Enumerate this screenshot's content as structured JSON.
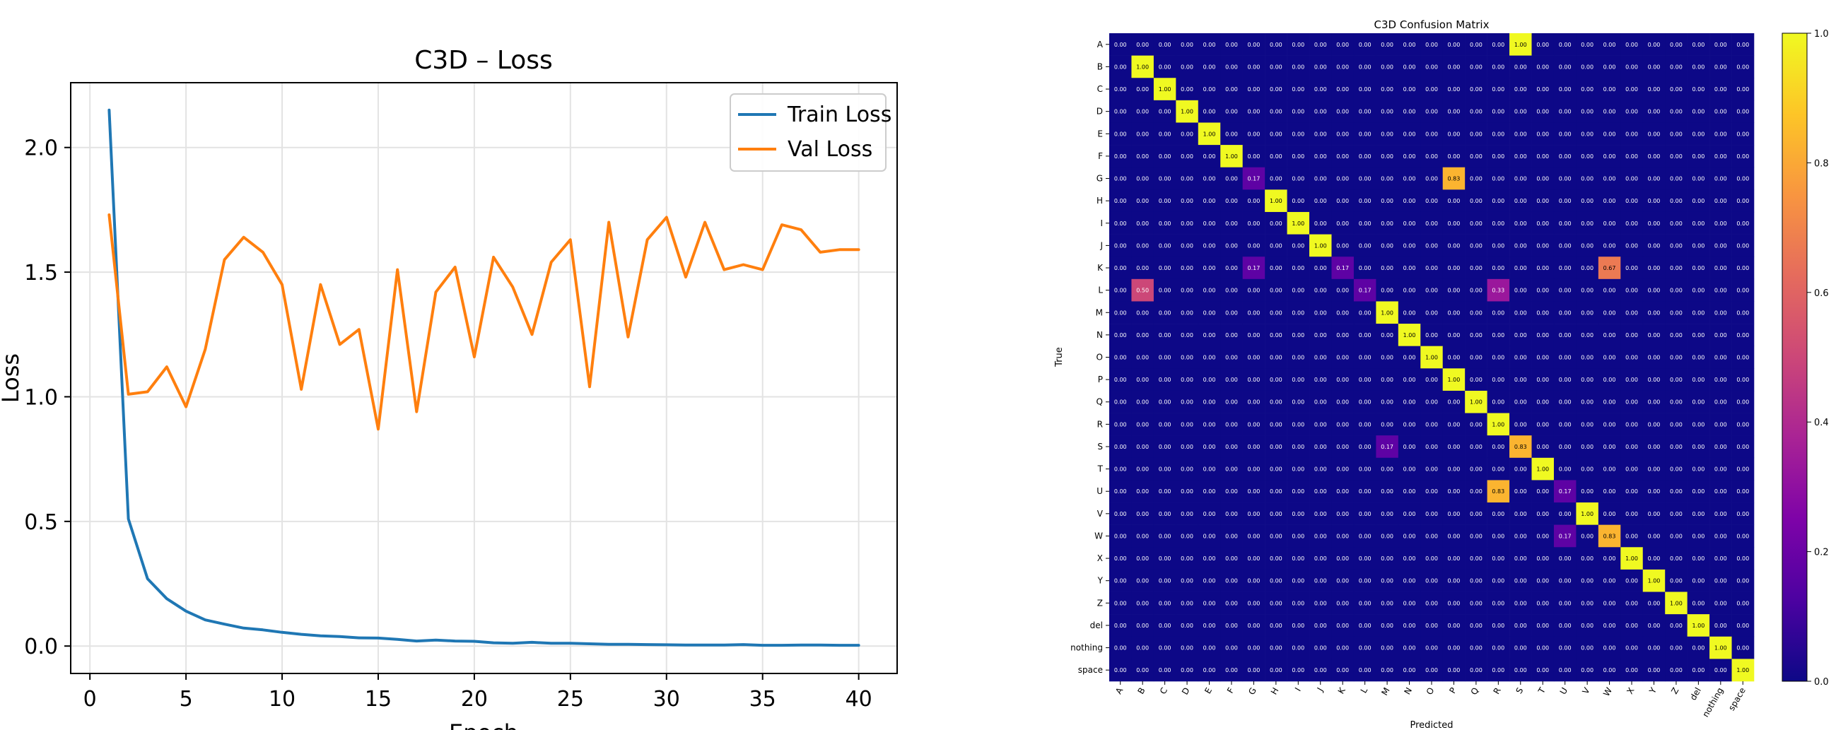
{
  "chart_data": [
    {
      "type": "line",
      "title": "C3D – Loss",
      "xlabel": "Epoch",
      "ylabel": "Loss",
      "xlim": [
        -1,
        42
      ],
      "ylim": [
        -0.11,
        2.26
      ],
      "xticks": [
        0,
        5,
        10,
        15,
        20,
        25,
        30,
        35,
        40
      ],
      "yticks": [
        0.0,
        0.5,
        1.0,
        1.5,
        2.0
      ],
      "ytick_labels": [
        "0.0",
        "0.5",
        "1.0",
        "1.5",
        "2.0"
      ],
      "grid": true,
      "legend": "top-right",
      "x": [
        1,
        2,
        3,
        4,
        5,
        6,
        7,
        8,
        9,
        10,
        11,
        12,
        13,
        14,
        15,
        16,
        17,
        18,
        19,
        20,
        21,
        22,
        23,
        24,
        25,
        26,
        27,
        28,
        29,
        30,
        31,
        32,
        33,
        34,
        35,
        36,
        37,
        38,
        39,
        40
      ],
      "series": [
        {
          "name": "Train Loss",
          "color": "#1f77b4",
          "values": [
            2.15,
            0.51,
            0.27,
            0.19,
            0.14,
            0.105,
            0.088,
            0.072,
            0.065,
            0.055,
            0.047,
            0.041,
            0.038,
            0.033,
            0.032,
            0.027,
            0.02,
            0.024,
            0.02,
            0.019,
            0.013,
            0.011,
            0.015,
            0.011,
            0.011,
            0.009,
            0.007,
            0.007,
            0.006,
            0.005,
            0.004,
            0.004,
            0.004,
            0.006,
            0.003,
            0.003,
            0.004,
            0.004,
            0.003,
            0.003
          ]
        },
        {
          "name": "Val Loss",
          "color": "#ff7f0e",
          "values": [
            1.73,
            1.01,
            1.02,
            1.12,
            0.96,
            1.19,
            1.55,
            1.64,
            1.58,
            1.45,
            1.03,
            1.45,
            1.21,
            1.27,
            0.87,
            1.51,
            0.94,
            1.42,
            1.52,
            1.16,
            1.56,
            1.44,
            1.25,
            1.54,
            1.63,
            1.04,
            1.7,
            1.24,
            1.63,
            1.72,
            1.48,
            1.7,
            1.51,
            1.53,
            1.51,
            1.69,
            1.67,
            1.58,
            1.59,
            1.59
          ]
        }
      ]
    },
    {
      "type": "heatmap",
      "title": "C3D Confusion Matrix",
      "xlabel": "Predicted",
      "ylabel": "True",
      "labels": [
        "A",
        "B",
        "C",
        "D",
        "E",
        "F",
        "G",
        "H",
        "I",
        "J",
        "K",
        "L",
        "M",
        "N",
        "O",
        "P",
        "Q",
        "R",
        "S",
        "T",
        "U",
        "V",
        "W",
        "X",
        "Y",
        "Z",
        "del",
        "nothing",
        "space"
      ],
      "value_format": "0.00",
      "colormap": "plasma",
      "colorbar_range": [
        0.0,
        1.0
      ],
      "colorbar_ticks": [
        0.0,
        0.2,
        0.4,
        0.6,
        0.8,
        1.0
      ],
      "colorbar_tick_labels": [
        "0.0",
        "0.2",
        "0.4",
        "0.6",
        "0.8",
        "1.0"
      ],
      "nonzero_cells": [
        {
          "row": "A",
          "col": "S",
          "value": 1.0
        },
        {
          "row": "B",
          "col": "B",
          "value": 1.0
        },
        {
          "row": "C",
          "col": "C",
          "value": 1.0
        },
        {
          "row": "D",
          "col": "D",
          "value": 1.0
        },
        {
          "row": "E",
          "col": "E",
          "value": 1.0
        },
        {
          "row": "F",
          "col": "F",
          "value": 1.0
        },
        {
          "row": "G",
          "col": "G",
          "value": 0.17
        },
        {
          "row": "G",
          "col": "P",
          "value": 0.83
        },
        {
          "row": "H",
          "col": "H",
          "value": 1.0
        },
        {
          "row": "I",
          "col": "I",
          "value": 1.0
        },
        {
          "row": "J",
          "col": "J",
          "value": 1.0
        },
        {
          "row": "K",
          "col": "G",
          "value": 0.17
        },
        {
          "row": "K",
          "col": "K",
          "value": 0.17
        },
        {
          "row": "K",
          "col": "W",
          "value": 0.67
        },
        {
          "row": "L",
          "col": "B",
          "value": 0.5
        },
        {
          "row": "L",
          "col": "L",
          "value": 0.17
        },
        {
          "row": "L",
          "col": "R",
          "value": 0.33
        },
        {
          "row": "M",
          "col": "M",
          "value": 1.0
        },
        {
          "row": "N",
          "col": "N",
          "value": 1.0
        },
        {
          "row": "O",
          "col": "O",
          "value": 1.0
        },
        {
          "row": "P",
          "col": "P",
          "value": 1.0
        },
        {
          "row": "Q",
          "col": "Q",
          "value": 1.0
        },
        {
          "row": "R",
          "col": "R",
          "value": 1.0
        },
        {
          "row": "S",
          "col": "M",
          "value": 0.17
        },
        {
          "row": "S",
          "col": "S",
          "value": 0.83
        },
        {
          "row": "T",
          "col": "T",
          "value": 1.0
        },
        {
          "row": "U",
          "col": "R",
          "value": 0.83
        },
        {
          "row": "U",
          "col": "U",
          "value": 0.17
        },
        {
          "row": "V",
          "col": "V",
          "value": 1.0
        },
        {
          "row": "W",
          "col": "U",
          "value": 0.17
        },
        {
          "row": "W",
          "col": "W",
          "value": 0.83
        },
        {
          "row": "X",
          "col": "X",
          "value": 1.0
        },
        {
          "row": "Y",
          "col": "Y",
          "value": 1.0
        },
        {
          "row": "Z",
          "col": "Z",
          "value": 1.0
        },
        {
          "row": "del",
          "col": "del",
          "value": 1.0
        },
        {
          "row": "nothing",
          "col": "nothing",
          "value": 1.0
        },
        {
          "row": "space",
          "col": "space",
          "value": 1.0
        }
      ]
    }
  ]
}
